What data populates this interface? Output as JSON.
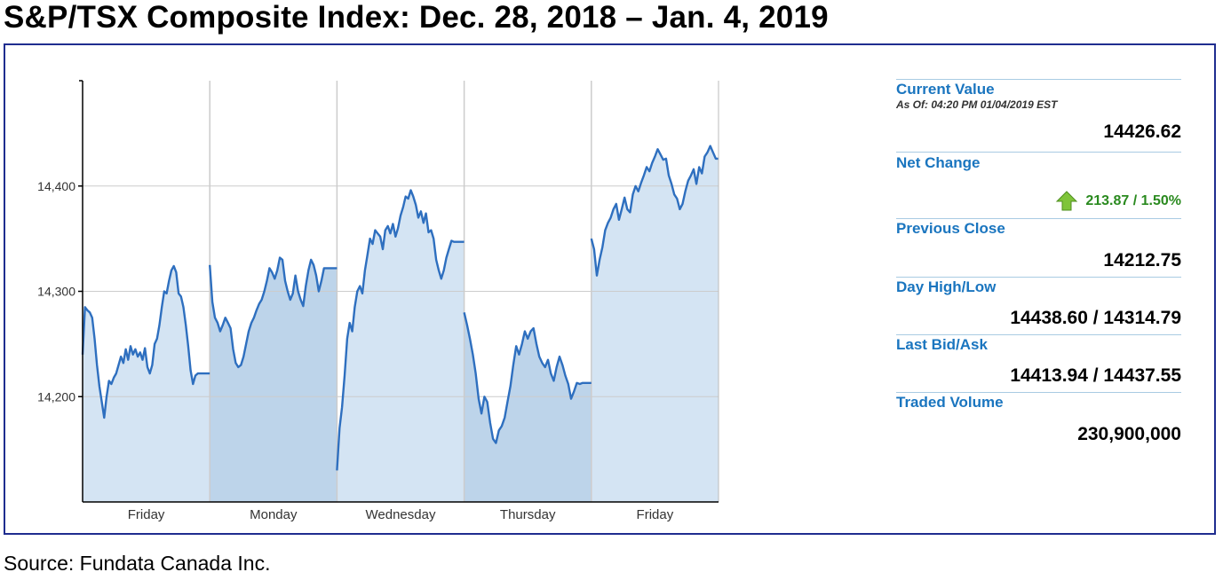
{
  "title": "S&P/TSX Composite Index: Dec. 28, 2018 – Jan. 4, 2019",
  "source": "Source: Fundata Canada Inc.",
  "colors": {
    "frame_border": "#1f2d8f",
    "line": "#2e6fbf",
    "fill_light": "#d4e4f3",
    "fill_dark": "#bdd4ea",
    "grid": "#cccccc",
    "label_blue": "#1a75bf",
    "change_green": "#2a8a1f",
    "arrow_green": "#7fc43a"
  },
  "panel": {
    "current_value_label": "Current Value",
    "as_of": "As Of: 04:20 PM 01/04/2019 EST",
    "current_value": "14426.62",
    "net_change_label": "Net Change",
    "net_change_icon": "up-arrow-icon",
    "net_change": "213.87 / 1.50%",
    "previous_close_label": "Previous Close",
    "previous_close": "14212.75",
    "day_high_low_label": "Day High/Low",
    "day_high_low": "14438.60 / 14314.79",
    "last_bid_ask_label": "Last Bid/Ask",
    "last_bid_ask": "14413.94 / 14437.55",
    "traded_volume_label": "Traded Volume",
    "traded_volume": "230,900,000"
  },
  "chart_data": {
    "type": "area",
    "title": "",
    "xlabel": "",
    "ylabel": "",
    "ylim": [
      14100,
      14500
    ],
    "yticks": [
      14200,
      14300,
      14400
    ],
    "ytick_labels": [
      "14,200",
      "14,300",
      "14,400"
    ],
    "grid": true,
    "categories": [
      "Friday",
      "Monday",
      "Wednesday",
      "Thursday",
      "Friday"
    ],
    "series": [
      {
        "values": [
          [
            14240,
            14285,
            14282,
            14280,
            14275,
            14255,
            14230,
            14210,
            14195,
            14180,
            14200,
            14215,
            14212,
            14218,
            14222,
            14230,
            14238,
            14232,
            14245,
            14235,
            14248,
            14240,
            14245,
            14238,
            14242,
            14235,
            14246,
            14228,
            14222,
            14230,
            14250,
            14255,
            14268,
            14285,
            14300,
            14298,
            14310,
            14320,
            14324,
            14318,
            14298,
            14295,
            14285,
            14268,
            14248,
            14225,
            14212,
            14220,
            14222,
            14222,
            14222,
            14222,
            14222,
            14222
          ],
          [
            14325,
            14290,
            14275,
            14270,
            14262,
            14268,
            14275,
            14270,
            14265,
            14245,
            14232,
            14228,
            14230,
            14238,
            14250,
            14262,
            14270,
            14275,
            14282,
            14288,
            14292,
            14300,
            14310,
            14322,
            14318,
            14312,
            14320,
            14332,
            14330,
            14310,
            14300,
            14292,
            14298,
            14315,
            14300,
            14292,
            14286,
            14305,
            14320,
            14330,
            14325,
            14315,
            14300,
            14310,
            14322,
            14322,
            14322,
            14322,
            14322,
            14322
          ],
          [
            14130,
            14170,
            14190,
            14220,
            14255,
            14270,
            14262,
            14285,
            14300,
            14305,
            14298,
            14320,
            14335,
            14350,
            14345,
            14358,
            14355,
            14352,
            14340,
            14358,
            14362,
            14355,
            14364,
            14352,
            14360,
            14372,
            14380,
            14390,
            14388,
            14396,
            14390,
            14382,
            14370,
            14376,
            14365,
            14374,
            14356,
            14358,
            14350,
            14330,
            14320,
            14312,
            14320,
            14332,
            14340,
            14348,
            14347,
            14347,
            14347,
            14347,
            14347
          ],
          [
            14280,
            14268,
            14255,
            14240,
            14222,
            14198,
            14184,
            14200,
            14195,
            14175,
            14160,
            14156,
            14168,
            14172,
            14180,
            14195,
            14210,
            14230,
            14248,
            14240,
            14250,
            14262,
            14255,
            14262,
            14265,
            14250,
            14238,
            14232,
            14228,
            14235,
            14222,
            14215,
            14228,
            14238,
            14230,
            14220,
            14212,
            14198,
            14205,
            14213,
            14212,
            14213,
            14213,
            14213,
            14213
          ],
          [
            14350,
            14340,
            14315,
            14330,
            14342,
            14358,
            14365,
            14370,
            14378,
            14383,
            14368,
            14378,
            14389,
            14378,
            14375,
            14392,
            14400,
            14395,
            14403,
            14410,
            14418,
            14414,
            14422,
            14428,
            14435,
            14430,
            14425,
            14426,
            14410,
            14402,
            14392,
            14388,
            14378,
            14383,
            14395,
            14405,
            14410,
            14416,
            14402,
            14418,
            14412,
            14428,
            14432,
            14438,
            14432,
            14426,
            14426
          ]
        ]
      }
    ]
  }
}
